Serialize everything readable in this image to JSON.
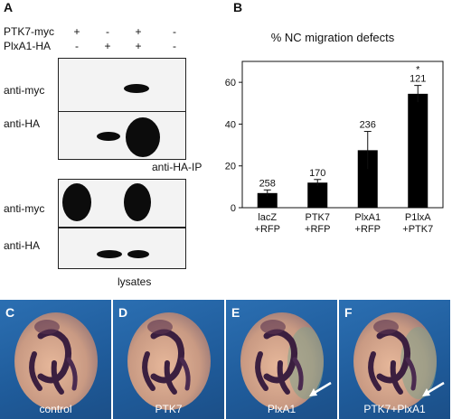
{
  "panel_a": {
    "letter": "A",
    "rows": [
      {
        "label": "PTK7-myc",
        "marks": [
          "+",
          "-",
          "+",
          "-"
        ]
      },
      {
        "label": "PlxA1-HA",
        "marks": [
          "-",
          "+",
          "+",
          "-"
        ]
      }
    ],
    "ip_blots": [
      {
        "label": "anti-myc"
      },
      {
        "label": "anti-HA"
      }
    ],
    "ip_caption": "anti-HA-IP",
    "lysate_blots": [
      {
        "label": "anti-myc"
      },
      {
        "label": "anti-HA"
      }
    ],
    "lysate_caption": "lysates"
  },
  "panel_b": {
    "letter": "B"
  },
  "chart_data": {
    "type": "bar",
    "title": "% NC migration defects",
    "categories": [
      "lacZ\n+RFP",
      "PTK7\n+RFP",
      "PlxA1\n+RFP",
      "P1lxA\n+PTK7"
    ],
    "category_lines": [
      [
        "lacZ",
        "+RFP"
      ],
      [
        "PTK7",
        "+RFP"
      ],
      [
        "PlxA1",
        "+RFP"
      ],
      [
        "P1lxA",
        "+PTK7"
      ]
    ],
    "values": [
      7,
      12,
      27.5,
      54.5
    ],
    "errors": [
      1.5,
      1.5,
      9,
      4
    ],
    "n_labels": [
      "258",
      "170",
      "236",
      "121"
    ],
    "significance": [
      "",
      "",
      "",
      "*"
    ],
    "ylim": [
      0,
      70
    ],
    "yticks": [
      0,
      20,
      40,
      60
    ],
    "bar_color": "#000000"
  },
  "embryo_panels": [
    {
      "letter": "C",
      "caption": "control",
      "arrow": false
    },
    {
      "letter": "D",
      "caption": "PTK7",
      "arrow": false
    },
    {
      "letter": "E",
      "caption": "PlxA1",
      "arrow": true
    },
    {
      "letter": "F",
      "caption": "PTK7+PlxA1",
      "arrow": true
    }
  ]
}
